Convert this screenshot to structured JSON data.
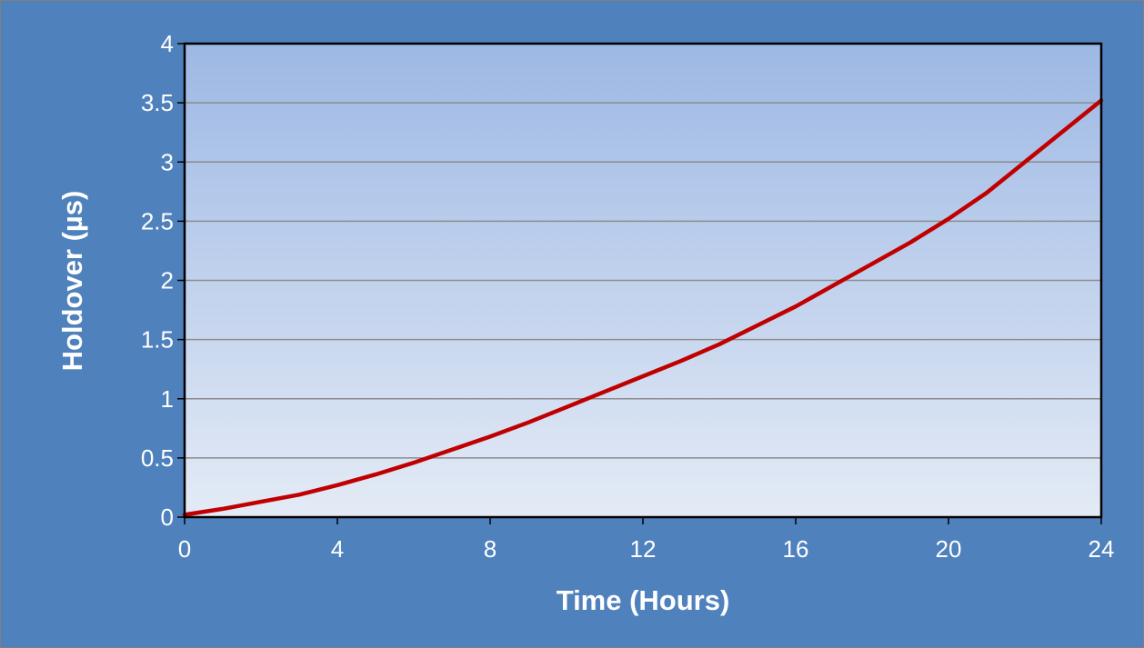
{
  "chart_data": {
    "type": "line",
    "title": "",
    "xlabel": "Time (Hours)",
    "ylabel": "Holdover (µs)",
    "xlim": [
      0,
      24
    ],
    "ylim": [
      0,
      4
    ],
    "x_ticks": [
      "0",
      "4",
      "8",
      "12",
      "16",
      "20",
      "24"
    ],
    "y_ticks": [
      "0",
      "0.5",
      "1",
      "1.5",
      "2",
      "2.5",
      "3",
      "3.5",
      "4"
    ],
    "grid": "horizontal",
    "legend": "none",
    "colors": {
      "frame": "#4f81bd",
      "plot_top": "#9db8e4",
      "plot_bottom": "#e4ebf6",
      "gridline": "#8c8c8c",
      "series": "#c00000"
    },
    "series": [
      {
        "name": "",
        "x": [
          0,
          1,
          2,
          3,
          4,
          5,
          6,
          7,
          8,
          9,
          10,
          11,
          12,
          13,
          14,
          15,
          16,
          17,
          18,
          19,
          20,
          21,
          22,
          23,
          24
        ],
        "values": [
          0.02,
          0.07,
          0.13,
          0.19,
          0.27,
          0.36,
          0.46,
          0.57,
          0.68,
          0.8,
          0.93,
          1.06,
          1.19,
          1.32,
          1.46,
          1.62,
          1.78,
          1.96,
          2.14,
          2.32,
          2.52,
          2.74,
          3.0,
          3.26,
          3.52
        ]
      }
    ]
  }
}
